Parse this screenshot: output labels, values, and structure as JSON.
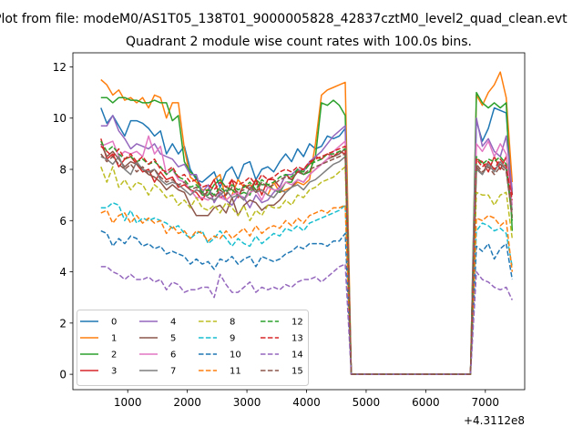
{
  "figure": {
    "suptitle": "Plot from file: modeM0/AS1T05_138T01_9000005828_42837cztM0_level2_quad_clean.evt"
  },
  "chart_data": {
    "type": "line",
    "title": "Quadrant 2 module wise count rates with 100.0s bins.",
    "xlabel": "",
    "ylabel": "",
    "x_offset_label": "+4.3112e8",
    "xlim": [
      80,
      7660
    ],
    "ylim": [
      -0.6,
      12.55
    ],
    "xticks": [
      1000,
      2000,
      3000,
      4000,
      5000,
      6000,
      7000
    ],
    "yticks": [
      0,
      2,
      4,
      6,
      8,
      10,
      12
    ],
    "grid": false,
    "legend": {
      "placement": "lower-left",
      "columns": 4
    },
    "x": [
      550,
      650,
      750,
      850,
      950,
      1050,
      1150,
      1250,
      1350,
      1450,
      1550,
      1650,
      1750,
      1850,
      1950,
      2050,
      2150,
      2250,
      2350,
      2450,
      2550,
      2650,
      2750,
      2850,
      2950,
      3050,
      3150,
      3250,
      3350,
      3450,
      3550,
      3650,
      3750,
      3850,
      3950,
      4050,
      4150,
      4250,
      4350,
      4450,
      4550,
      4650,
      4750,
      4850,
      4950,
      5050,
      5150,
      5250,
      5350,
      5450,
      5550,
      5650,
      5750,
      5850,
      5950,
      6050,
      6150,
      6250,
      6350,
      6450,
      6550,
      6650,
      6750,
      6850,
      6950,
      7050,
      7150,
      7250,
      7350,
      7450
    ],
    "series": [
      {
        "name": "0",
        "color": "#1f77b4",
        "dash": "solid",
        "values": [
          10.4,
          9.8,
          10.1,
          9.7,
          9.3,
          9.9,
          9.9,
          9.8,
          9.6,
          9.3,
          9.5,
          8.6,
          9.0,
          8.6,
          8.9,
          8.0,
          7.6,
          7.5,
          7.7,
          7.9,
          7.3,
          7.9,
          8.1,
          7.6,
          8.2,
          8.3,
          7.6,
          8.0,
          8.1,
          7.9,
          8.3,
          8.6,
          8.3,
          8.8,
          8.5,
          9.0,
          8.8,
          8.9,
          9.3,
          9.2,
          9.3,
          9.6,
          0,
          0,
          0,
          0,
          0,
          0,
          0,
          0,
          0,
          0,
          0,
          0,
          0,
          0,
          0,
          0,
          0,
          0,
          0,
          0,
          0,
          9.9,
          9.1,
          9.6,
          10.4,
          10.3,
          10.2,
          7.0
        ]
      },
      {
        "name": "1",
        "color": "#ff7f0e",
        "dash": "solid",
        "values": [
          11.5,
          11.3,
          10.9,
          11.1,
          10.7,
          10.8,
          10.6,
          10.8,
          10.4,
          10.9,
          10.8,
          10.0,
          10.6,
          10.6,
          8.8,
          7.7,
          7.5,
          7.2,
          7.2,
          7.6,
          7.8,
          6.8,
          7.0,
          7.6,
          7.3,
          7.4,
          7.2,
          7.2,
          7.0,
          7.5,
          7.1,
          7.2,
          7.3,
          7.5,
          7.4,
          7.6,
          9.0,
          10.9,
          11.1,
          11.2,
          11.3,
          11.4,
          0,
          0,
          0,
          0,
          0,
          0,
          0,
          0,
          0,
          0,
          0,
          0,
          0,
          0,
          0,
          0,
          0,
          0,
          0,
          0,
          0,
          10.9,
          10.5,
          11.0,
          11.3,
          11.8,
          10.8,
          7.5
        ]
      },
      {
        "name": "2",
        "color": "#2ca02c",
        "dash": "solid",
        "values": [
          10.8,
          10.8,
          10.6,
          10.8,
          10.8,
          10.7,
          10.7,
          10.6,
          10.6,
          10.7,
          10.6,
          10.6,
          9.9,
          10.1,
          8.3,
          7.9,
          7.7,
          7.0,
          7.0,
          7.4,
          7.6,
          7.3,
          7.2,
          7.0,
          7.1,
          7.0,
          7.6,
          7.4,
          7.4,
          7.2,
          7.1,
          7.5,
          7.5,
          8.0,
          7.8,
          7.9,
          8.5,
          10.6,
          10.5,
          10.7,
          10.5,
          10.1,
          0,
          0,
          0,
          0,
          0,
          0,
          0,
          0,
          0,
          0,
          0,
          0,
          0,
          0,
          0,
          0,
          0,
          0,
          0,
          0,
          0,
          11.0,
          10.6,
          10.4,
          10.6,
          10.4,
          10.6,
          5.6
        ]
      },
      {
        "name": "3",
        "color": "#d62728",
        "dash": "solid",
        "values": [
          9.2,
          8.4,
          8.6,
          8.1,
          8.4,
          8.5,
          8.2,
          7.9,
          8.0,
          7.5,
          7.9,
          7.6,
          7.7,
          7.3,
          7.4,
          7.2,
          7.1,
          6.8,
          7.2,
          7.6,
          6.9,
          7.0,
          7.6,
          6.9,
          7.4,
          7.2,
          7.6,
          7.0,
          7.6,
          7.6,
          7.3,
          7.8,
          7.6,
          7.9,
          8.0,
          8.2,
          8.5,
          8.4,
          8.6,
          8.5,
          8.7,
          8.6,
          0,
          0,
          0,
          0,
          0,
          0,
          0,
          0,
          0,
          0,
          0,
          0,
          0,
          0,
          0,
          0,
          0,
          0,
          0,
          0,
          0,
          8.4,
          8.3,
          7.9,
          8.5,
          8.0,
          8.5,
          7.0
        ]
      },
      {
        "name": "4",
        "color": "#9467bd",
        "dash": "solid",
        "values": [
          9.7,
          9.7,
          10.1,
          9.5,
          9.2,
          8.8,
          9.0,
          8.9,
          8.8,
          9.0,
          8.6,
          8.5,
          8.4,
          8.1,
          8.2,
          7.8,
          7.8,
          7.1,
          7.4,
          6.7,
          7.1,
          6.8,
          6.6,
          7.0,
          6.9,
          6.5,
          7.0,
          6.7,
          6.8,
          7.1,
          7.3,
          7.8,
          7.8,
          8.0,
          7.9,
          8.3,
          8.5,
          8.7,
          9.0,
          9.3,
          9.5,
          9.7,
          0,
          0,
          0,
          0,
          0,
          0,
          0,
          0,
          0,
          0,
          0,
          0,
          0,
          0,
          0,
          0,
          0,
          0,
          0,
          0,
          0,
          10.0,
          8.9,
          9.2,
          8.7,
          8.5,
          9.3,
          7.2
        ]
      },
      {
        "name": "5",
        "color": "#8c564b",
        "dash": "solid",
        "values": [
          9.0,
          8.5,
          8.7,
          8.4,
          8.1,
          8.3,
          8.2,
          8.0,
          7.8,
          7.7,
          7.5,
          7.2,
          7.4,
          7.2,
          7.1,
          6.6,
          6.2,
          6.2,
          6.2,
          6.5,
          6.6,
          6.3,
          6.9,
          6.2,
          6.6,
          6.8,
          6.7,
          6.4,
          6.6,
          6.6,
          6.8,
          7.1,
          7.3,
          7.6,
          7.5,
          7.8,
          8.0,
          8.2,
          8.4,
          8.5,
          8.6,
          8.8,
          0,
          0,
          0,
          0,
          0,
          0,
          0,
          0,
          0,
          0,
          0,
          0,
          0,
          0,
          0,
          0,
          0,
          0,
          0,
          0,
          0,
          8.1,
          7.8,
          8.3,
          8.0,
          8.2,
          8.0,
          6.1
        ]
      },
      {
        "name": "6",
        "color": "#e377c2",
        "dash": "solid",
        "values": [
          8.9,
          9.0,
          9.1,
          8.5,
          8.7,
          8.6,
          8.7,
          8.5,
          9.3,
          8.6,
          8.9,
          7.8,
          8.0,
          7.6,
          7.5,
          7.2,
          6.9,
          6.9,
          6.8,
          7.0,
          6.9,
          6.8,
          7.0,
          7.1,
          6.8,
          7.1,
          7.2,
          6.8,
          7.3,
          7.2,
          7.2,
          7.5,
          7.4,
          7.6,
          7.5,
          7.8,
          8.0,
          8.2,
          8.4,
          8.7,
          8.9,
          9.1,
          0,
          0,
          0,
          0,
          0,
          0,
          0,
          0,
          0,
          0,
          0,
          0,
          0,
          0,
          0,
          0,
          0,
          0,
          0,
          0,
          0,
          9.0,
          8.7,
          9.1,
          8.5,
          9.0,
          8.6,
          6.6
        ]
      },
      {
        "name": "7",
        "color": "#7f7f7f",
        "dash": "solid",
        "values": [
          8.5,
          8.4,
          8.2,
          8.5,
          8.0,
          7.8,
          8.3,
          8.0,
          7.9,
          8.0,
          7.6,
          7.4,
          7.5,
          7.4,
          7.2,
          7.0,
          7.2,
          7.1,
          6.9,
          6.8,
          7.0,
          7.2,
          6.9,
          7.0,
          6.8,
          7.3,
          7.1,
          7.2,
          7.0,
          6.9,
          7.2,
          7.1,
          7.3,
          7.4,
          7.2,
          7.5,
          7.6,
          7.8,
          8.0,
          8.2,
          8.3,
          8.5,
          0,
          0,
          0,
          0,
          0,
          0,
          0,
          0,
          0,
          0,
          0,
          0,
          0,
          0,
          0,
          0,
          0,
          0,
          0,
          0,
          0,
          8.0,
          7.8,
          8.2,
          7.9,
          8.3,
          8.0,
          6.4
        ]
      },
      {
        "name": "8",
        "color": "#bcbd22",
        "dash": "dashed",
        "values": [
          8.1,
          7.5,
          8.1,
          7.3,
          7.6,
          7.2,
          7.5,
          7.4,
          7.0,
          7.4,
          7.2,
          6.9,
          7.0,
          6.6,
          6.8,
          6.5,
          6.9,
          6.5,
          6.4,
          6.6,
          6.3,
          6.7,
          6.5,
          6.2,
          6.6,
          6.0,
          6.4,
          6.2,
          6.6,
          6.5,
          6.5,
          6.8,
          6.6,
          7.0,
          6.9,
          7.2,
          7.3,
          7.5,
          7.6,
          7.7,
          7.9,
          8.1,
          0,
          0,
          0,
          0,
          0,
          0,
          0,
          0,
          0,
          0,
          0,
          0,
          0,
          0,
          0,
          0,
          0,
          0,
          0,
          0,
          0,
          7.1,
          7.0,
          7.0,
          6.6,
          7.0,
          7.1,
          5.3
        ]
      },
      {
        "name": "9",
        "color": "#17becf",
        "dash": "dashed",
        "values": [
          6.5,
          6.5,
          6.7,
          6.6,
          6.0,
          6.4,
          5.9,
          6.1,
          6.0,
          6.1,
          6.0,
          5.9,
          5.7,
          5.8,
          5.5,
          5.3,
          5.5,
          5.6,
          5.1,
          5.3,
          5.6,
          5.3,
          5.0,
          5.3,
          5.1,
          5.0,
          5.4,
          5.1,
          5.3,
          5.5,
          5.4,
          5.7,
          5.6,
          5.8,
          5.6,
          5.9,
          6.0,
          6.1,
          6.2,
          6.3,
          6.4,
          6.6,
          0,
          0,
          0,
          0,
          0,
          0,
          0,
          0,
          0,
          0,
          0,
          0,
          0,
          0,
          0,
          0,
          0,
          0,
          0,
          0,
          0,
          5.6,
          5.9,
          5.8,
          5.6,
          5.7,
          5.5,
          4.2
        ]
      },
      {
        "name": "10",
        "color": "#1f77b4",
        "dash": "dashed",
        "values": [
          5.6,
          5.5,
          5.0,
          5.3,
          5.1,
          5.4,
          5.3,
          5.0,
          5.1,
          4.9,
          5.0,
          4.7,
          4.8,
          4.7,
          4.6,
          4.3,
          4.5,
          4.3,
          4.4,
          4.1,
          4.5,
          4.4,
          4.6,
          4.3,
          4.5,
          4.6,
          4.2,
          4.6,
          4.5,
          4.4,
          4.5,
          4.7,
          4.8,
          5.0,
          4.9,
          5.1,
          5.1,
          5.1,
          5.0,
          5.2,
          5.2,
          5.5,
          0,
          0,
          0,
          0,
          0,
          0,
          0,
          0,
          0,
          0,
          0,
          0,
          0,
          0,
          0,
          0,
          0,
          0,
          0,
          0,
          0,
          5.0,
          4.8,
          5.1,
          4.5,
          4.9,
          5.1,
          3.7
        ]
      },
      {
        "name": "11",
        "color": "#ff7f0e",
        "dash": "dashed",
        "values": [
          6.3,
          6.4,
          5.9,
          6.2,
          6.3,
          5.9,
          6.2,
          5.9,
          6.1,
          5.9,
          6.0,
          5.5,
          5.8,
          5.5,
          5.6,
          5.3,
          5.6,
          5.5,
          5.2,
          5.4,
          5.3,
          5.6,
          5.3,
          5.5,
          5.7,
          5.4,
          5.8,
          5.5,
          5.7,
          5.8,
          5.7,
          6.0,
          5.8,
          6.1,
          5.9,
          6.2,
          6.3,
          6.4,
          6.3,
          6.5,
          6.5,
          6.6,
          0,
          0,
          0,
          0,
          0,
          0,
          0,
          0,
          0,
          0,
          0,
          0,
          0,
          0,
          0,
          0,
          0,
          0,
          0,
          0,
          0,
          6.1,
          6.0,
          6.2,
          6.1,
          5.8,
          6.0,
          4.0
        ]
      },
      {
        "name": "12",
        "color": "#2ca02c",
        "dash": "dashed",
        "values": [
          9.1,
          8.7,
          8.9,
          8.6,
          8.4,
          8.5,
          8.3,
          8.4,
          8.2,
          8.3,
          8.1,
          7.8,
          8.0,
          7.7,
          7.6,
          7.3,
          7.4,
          7.1,
          7.2,
          7.0,
          7.3,
          7.1,
          7.4,
          7.2,
          7.3,
          7.5,
          7.2,
          7.6,
          7.4,
          7.5,
          7.7,
          7.8,
          7.7,
          8.0,
          7.9,
          8.2,
          8.3,
          8.4,
          8.6,
          8.6,
          8.7,
          8.8,
          0,
          0,
          0,
          0,
          0,
          0,
          0,
          0,
          0,
          0,
          0,
          0,
          0,
          0,
          0,
          0,
          0,
          0,
          0,
          0,
          0,
          8.5,
          8.2,
          8.4,
          8.3,
          8.5,
          8.2,
          6.0
        ]
      },
      {
        "name": "13",
        "color": "#d62728",
        "dash": "dashed",
        "values": [
          8.9,
          8.7,
          8.5,
          8.8,
          8.4,
          8.6,
          8.3,
          8.5,
          8.2,
          8.4,
          8.0,
          7.9,
          8.1,
          7.7,
          7.8,
          7.5,
          7.6,
          7.3,
          7.4,
          7.2,
          7.5,
          7.3,
          7.6,
          7.4,
          7.5,
          7.7,
          7.4,
          7.8,
          7.6,
          7.7,
          7.9,
          8.0,
          7.9,
          8.1,
          8.0,
          8.3,
          8.4,
          8.5,
          8.6,
          8.7,
          8.8,
          8.9,
          0,
          0,
          0,
          0,
          0,
          0,
          0,
          0,
          0,
          0,
          0,
          0,
          0,
          0,
          0,
          0,
          0,
          0,
          0,
          0,
          0,
          8.4,
          8.1,
          8.3,
          8.0,
          8.4,
          8.1,
          6.8
        ]
      },
      {
        "name": "14",
        "color": "#9467bd",
        "dash": "dashed",
        "values": [
          4.2,
          4.2,
          4.0,
          3.9,
          3.7,
          3.9,
          3.7,
          3.7,
          3.8,
          3.6,
          3.7,
          3.3,
          3.6,
          3.5,
          3.2,
          3.3,
          3.3,
          3.4,
          3.4,
          3.0,
          3.9,
          3.5,
          3.2,
          3.2,
          3.4,
          3.6,
          3.2,
          3.4,
          3.3,
          3.4,
          3.3,
          3.5,
          3.4,
          3.6,
          3.7,
          3.7,
          3.8,
          3.6,
          3.8,
          4.0,
          4.2,
          4.3,
          0,
          0,
          0,
          0,
          0,
          0,
          0,
          0,
          0,
          0,
          0,
          0,
          0,
          0,
          0,
          0,
          0,
          0,
          0,
          0,
          0,
          4.0,
          3.7,
          3.6,
          3.4,
          3.3,
          3.4,
          2.9
        ]
      },
      {
        "name": "15",
        "color": "#8c564b",
        "dash": "dashed",
        "values": [
          8.6,
          8.3,
          8.5,
          8.2,
          8.0,
          8.2,
          7.9,
          8.1,
          7.8,
          8.0,
          7.7,
          7.5,
          7.6,
          7.4,
          7.5,
          7.2,
          7.3,
          7.0,
          7.1,
          6.9,
          7.2,
          7.0,
          7.3,
          7.1,
          7.2,
          7.4,
          7.1,
          7.5,
          7.3,
          7.4,
          7.6,
          7.7,
          7.6,
          7.9,
          7.8,
          8.0,
          8.1,
          8.2,
          8.3,
          8.4,
          8.5,
          8.6,
          0,
          0,
          0,
          0,
          0,
          0,
          0,
          0,
          0,
          0,
          0,
          0,
          0,
          0,
          0,
          0,
          0,
          0,
          0,
          0,
          0,
          8.2,
          7.9,
          8.1,
          7.8,
          8.1,
          7.9,
          6.2
        ]
      }
    ]
  }
}
